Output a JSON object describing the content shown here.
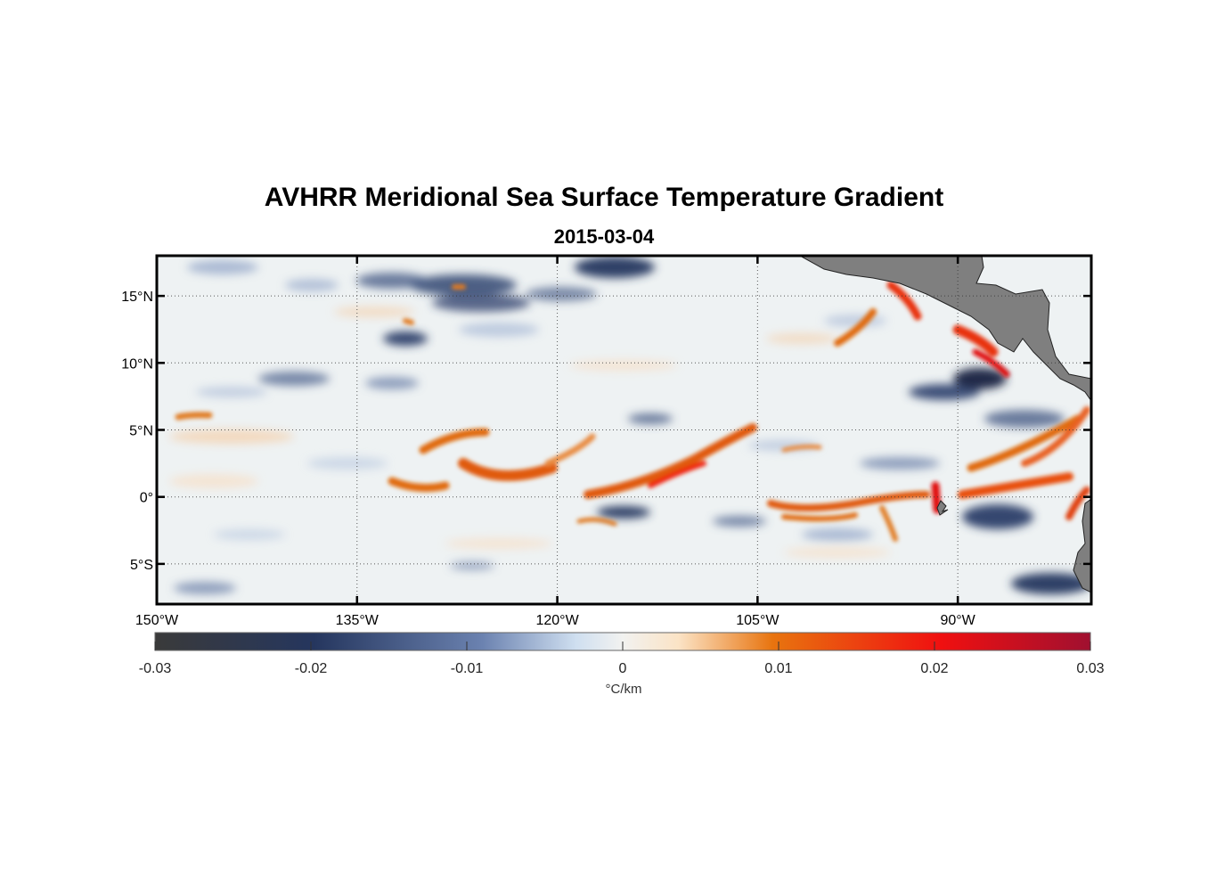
{
  "title": "AVHRR Meridional Sea Surface Temperature Gradient",
  "subtitle": "2015-03-04",
  "map": {
    "lon_range": [
      -150,
      -80
    ],
    "lat_range": [
      -8,
      18
    ],
    "lon_ticks": [
      {
        "value": -150,
        "label": "150°W"
      },
      {
        "value": -135,
        "label": "135°W"
      },
      {
        "value": -120,
        "label": "120°W"
      },
      {
        "value": -105,
        "label": "105°W"
      },
      {
        "value": -90,
        "label": "90°W"
      }
    ],
    "lat_ticks": [
      {
        "value": 15,
        "label": "15°N"
      },
      {
        "value": 10,
        "label": "10°N"
      },
      {
        "value": 5,
        "label": "5°N"
      },
      {
        "value": 0,
        "label": "0°"
      },
      {
        "value": -5,
        "label": "5°S"
      }
    ],
    "grid": "dotted",
    "land_color": "#7f7f7f"
  },
  "colorbar": {
    "ticks": [
      "-0.03",
      "-0.02",
      "-0.01",
      "0",
      "0.01",
      "0.02",
      "0.03"
    ],
    "range": [
      -0.03,
      0.03
    ],
    "unit_label": "°C/km",
    "colors": [
      "#3a3a3a",
      "#25365e",
      "#8fa7d0",
      "#eaf0f4",
      "#fbe3c5",
      "#e8740f",
      "#f01010",
      "#a01030"
    ]
  }
}
